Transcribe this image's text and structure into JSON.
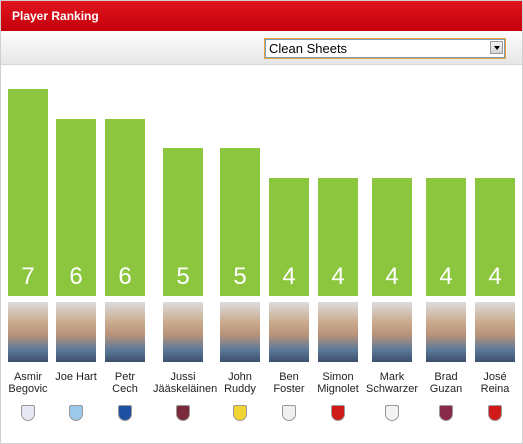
{
  "widget": {
    "title": "Player Ranking",
    "dropdown": "Clean Sheets"
  },
  "chart_data": {
    "type": "bar",
    "categories": [
      "Asmir\nBegovic",
      "Joe Hart",
      "Petr\nCech",
      "Jussi\nJääskeläinen",
      "John\nRuddy",
      "Ben\nFoster",
      "Simon\nMignolet",
      "Mark\nSchwarzer",
      "Brad\nGuzan",
      "José\nReina"
    ],
    "values": [
      7,
      6,
      6,
      5,
      5,
      4,
      4,
      4,
      4,
      4
    ],
    "color": "#8cc63f"
  }
}
